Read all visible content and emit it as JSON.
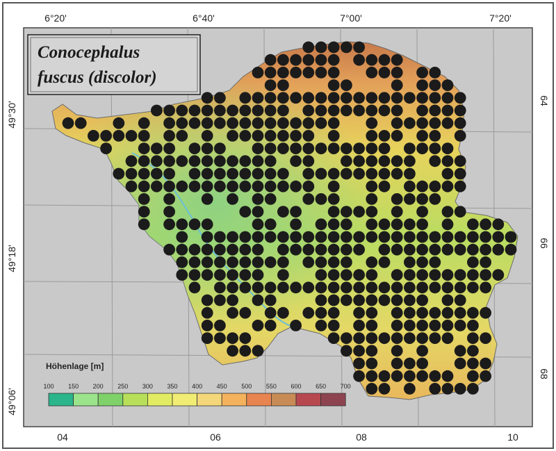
{
  "map": {
    "title_line1": "Conocephalus",
    "title_line2": "fuscus (discolor)",
    "top_labels": [
      "6°20'",
      "6°40'",
      "7°00'",
      "7°20'"
    ],
    "left_labels": [
      "49°30'",
      "49°18'",
      "49°06'"
    ],
    "right_labels": [
      "64",
      "66",
      "68"
    ],
    "bottom_labels": [
      "04",
      "06",
      "08",
      "10"
    ],
    "legend": {
      "title": "Höhenlage [m]",
      "ticks": [
        "100",
        "150",
        "200",
        "250",
        "300",
        "350",
        "400",
        "450",
        "500",
        "550",
        "600",
        "650",
        "700"
      ],
      "colors": [
        "#2bb58a",
        "#9be48c",
        "#7fd16a",
        "#b8df5a",
        "#e2ec62",
        "#f1ec74",
        "#f4d77a",
        "#f4b25c",
        "#e88450",
        "#c98b56",
        "#b84850",
        "#8e4450",
        "#4c2a38"
      ]
    },
    "colors": {
      "background": "#c9c9c9",
      "dot": "#1b1b1b",
      "lowland": "#9fd67a",
      "upland": "#e7c85a",
      "highland": "#c8794a"
    }
  }
}
